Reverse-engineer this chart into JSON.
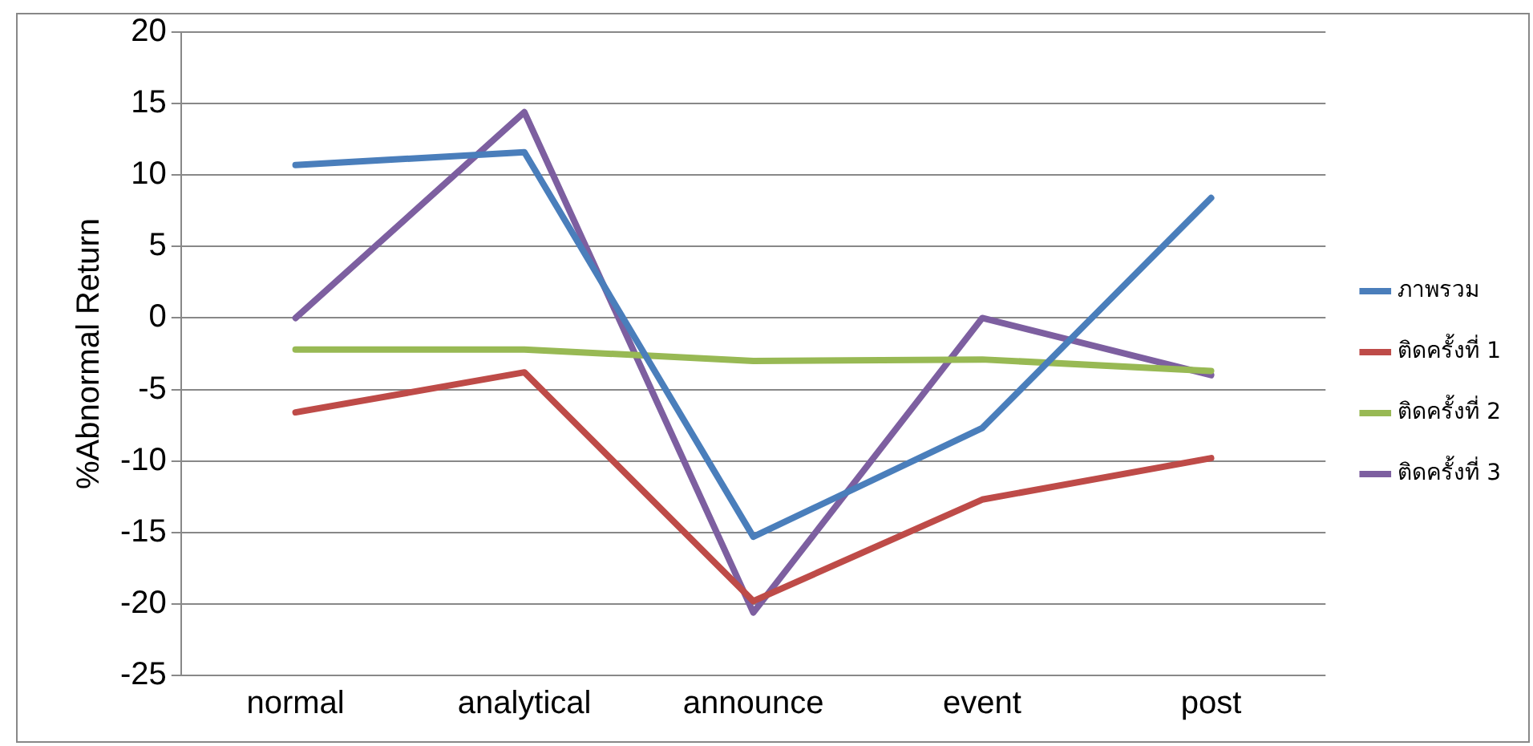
{
  "chart_data": {
    "type": "line",
    "ylabel": "%Abnormal Return",
    "categories": [
      "normal",
      "analytical",
      "announce",
      "event",
      "post"
    ],
    "series": [
      {
        "name": "ภาพรวม",
        "color": "#4a7ebb",
        "values": [
          10.7,
          11.6,
          -15.3,
          -7.7,
          8.4
        ]
      },
      {
        "name": "ติดครั้งที่ 1",
        "color": "#be4b48",
        "values": [
          -6.6,
          -3.8,
          -19.8,
          -12.7,
          -9.8
        ]
      },
      {
        "name": "ติดครั้งที่ 2",
        "color": "#98b954",
        "values": [
          -2.2,
          -2.2,
          -3.0,
          -2.9,
          -3.7
        ]
      },
      {
        "name": "ติดครั้งที่ 3",
        "color": "#7d5fa0",
        "values": [
          0,
          14.4,
          -20.6,
          0,
          -4.0
        ]
      }
    ],
    "ylim": [
      -25,
      20
    ],
    "yticks": [
      -25,
      -20,
      -15,
      -10,
      -5,
      0,
      5,
      10,
      15,
      20
    ],
    "grid": "y",
    "legend": "right",
    "marker": "none",
    "line_style": "solid"
  }
}
